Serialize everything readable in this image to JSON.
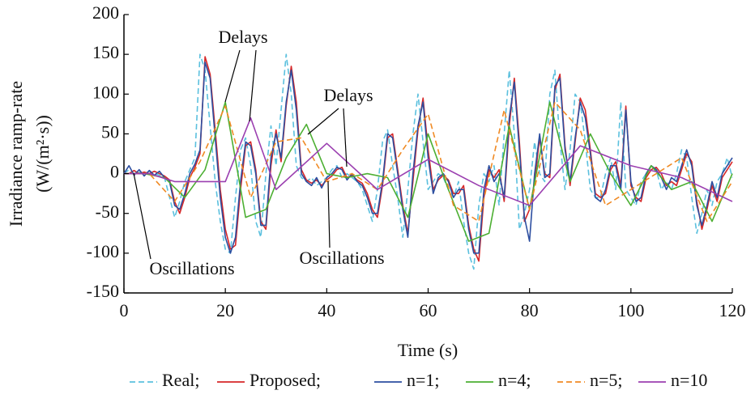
{
  "chart_data": {
    "type": "line",
    "xlabel": "Time (s)",
    "ylabel": [
      "Irradiance ramp-rate",
      "(W/(m²·s))"
    ],
    "xlim": [
      0,
      120
    ],
    "xticks": [
      0,
      20,
      40,
      60,
      80,
      100,
      120
    ],
    "ylim": [
      -150,
      200
    ],
    "yticks": [
      -150,
      -100,
      -50,
      0,
      50,
      100,
      150,
      200
    ],
    "annotations": [
      "Delays",
      "Delays",
      "Oscillations",
      "Oscillations"
    ],
    "series": [
      {
        "name": "Real;",
        "color": "#5bc0de",
        "dash": true,
        "x": [
          0,
          1,
          2,
          3,
          4,
          5,
          6,
          7,
          8,
          9,
          10,
          11,
          12,
          13,
          14,
          15,
          16,
          17,
          18,
          19,
          20,
          21,
          22,
          23,
          24,
          25,
          26,
          27,
          28,
          29,
          30,
          31,
          32,
          33,
          34,
          35,
          36,
          37,
          38,
          39,
          40,
          41,
          42,
          43,
          44,
          45,
          46,
          47,
          48,
          49,
          50,
          51,
          52,
          53,
          54,
          55,
          56,
          57,
          58,
          59,
          60,
          61,
          62,
          63,
          64,
          65,
          66,
          67,
          68,
          69,
          70,
          71,
          72,
          73,
          74,
          75,
          76,
          77,
          78,
          79,
          80,
          81,
          82,
          83,
          84,
          85,
          86,
          87,
          88,
          89,
          90,
          91,
          92,
          93,
          94,
          95,
          96,
          97,
          98,
          99,
          100,
          101,
          102,
          103,
          104,
          105,
          106,
          107,
          108,
          109,
          110,
          111,
          112,
          113,
          114,
          115,
          116,
          117,
          118,
          119,
          120
        ],
        "values": [
          0,
          5,
          0,
          2,
          0,
          3,
          0,
          -2,
          -5,
          -30,
          -55,
          -35,
          -10,
          5,
          20,
          150,
          130,
          60,
          -10,
          -60,
          -95,
          -100,
          -30,
          30,
          45,
          10,
          -60,
          -80,
          0,
          60,
          10,
          80,
          150,
          100,
          10,
          -5,
          -10,
          -5,
          -15,
          -10,
          -5,
          5,
          10,
          -5,
          0,
          -5,
          -10,
          -20,
          -40,
          -60,
          -20,
          40,
          55,
          10,
          -30,
          -80,
          -20,
          50,
          100,
          40,
          -20,
          -10,
          0,
          -5,
          -20,
          -30,
          -10,
          -60,
          -100,
          -120,
          -40,
          0,
          -10,
          10,
          -40,
          50,
          130,
          50,
          -70,
          -50,
          -20,
          40,
          0,
          -10,
          100,
          130,
          40,
          -20,
          30,
          100,
          90,
          40,
          -20,
          -30,
          -30,
          0,
          20,
          -20,
          90,
          -20,
          -30,
          -40,
          -10,
          0,
          10,
          5,
          -20,
          -10,
          -20,
          0,
          30,
          20,
          -30,
          -75,
          -50,
          -20,
          -40,
          -10,
          0,
          20,
          -5
        ]
      },
      {
        "name": "Proposed;",
        "color": "#d62728",
        "x": [
          0,
          1,
          2,
          3,
          4,
          5,
          6,
          7,
          8,
          9,
          10,
          11,
          12,
          13,
          14,
          15,
          16,
          17,
          18,
          19,
          20,
          21,
          22,
          23,
          24,
          25,
          26,
          27,
          28,
          29,
          30,
          31,
          32,
          33,
          34,
          35,
          36,
          37,
          38,
          39,
          40,
          41,
          42,
          43,
          44,
          45,
          46,
          47,
          48,
          49,
          50,
          51,
          52,
          53,
          54,
          55,
          56,
          57,
          58,
          59,
          60,
          61,
          62,
          63,
          64,
          65,
          66,
          67,
          68,
          69,
          70,
          71,
          72,
          73,
          74,
          75,
          76,
          77,
          78,
          79,
          80,
          81,
          82,
          83,
          84,
          85,
          86,
          87,
          88,
          89,
          90,
          91,
          92,
          93,
          94,
          95,
          96,
          97,
          98,
          99,
          100,
          101,
          102,
          103,
          104,
          105,
          106,
          107,
          108,
          109,
          110,
          111,
          112,
          113,
          114,
          115,
          116,
          117,
          118,
          119,
          120
        ],
        "values": [
          0,
          0,
          4,
          0,
          2,
          0,
          3,
          0,
          -3,
          -8,
          -35,
          -50,
          -30,
          -5,
          8,
          25,
          147,
          125,
          55,
          -20,
          -70,
          -95,
          -90,
          -20,
          35,
          40,
          5,
          -60,
          -70,
          10,
          55,
          15,
          85,
          135,
          90,
          5,
          -8,
          -12,
          -8,
          -15,
          -8,
          -3,
          5,
          8,
          -5,
          -2,
          -8,
          -12,
          -25,
          -45,
          -55,
          -15,
          45,
          50,
          5,
          -40,
          -75,
          -10,
          55,
          95,
          30,
          -20,
          -8,
          -2,
          -8,
          -25,
          -25,
          -15,
          -65,
          -95,
          -110,
          -30,
          5,
          -5,
          5,
          -35,
          60,
          120,
          40,
          -60,
          -45,
          -10,
          45,
          0,
          -5,
          105,
          125,
          35,
          -15,
          40,
          95,
          80,
          30,
          -25,
          -30,
          -25,
          5,
          15,
          -15,
          85,
          -15,
          -30,
          -35,
          -5,
          5,
          8,
          0,
          -15,
          -10,
          -15,
          5,
          25,
          15,
          -35,
          -70,
          -45,
          -15,
          -35,
          -5,
          5,
          15
        ]
      },
      {
        "name": "n=1;",
        "color": "#2c4ea0",
        "x": [
          0,
          1,
          2,
          3,
          4,
          5,
          6,
          7,
          8,
          9,
          10,
          11,
          12,
          13,
          14,
          15,
          16,
          17,
          18,
          19,
          20,
          21,
          22,
          23,
          24,
          25,
          26,
          27,
          28,
          29,
          30,
          31,
          32,
          33,
          34,
          35,
          36,
          37,
          38,
          39,
          40,
          41,
          42,
          43,
          44,
          45,
          46,
          47,
          48,
          49,
          50,
          51,
          52,
          53,
          54,
          55,
          56,
          57,
          58,
          59,
          60,
          61,
          62,
          63,
          64,
          65,
          66,
          67,
          68,
          69,
          70,
          71,
          72,
          73,
          74,
          75,
          76,
          77,
          78,
          79,
          80,
          81,
          82,
          83,
          84,
          85,
          86,
          87,
          88,
          89,
          90,
          91,
          92,
          93,
          94,
          95,
          96,
          97,
          98,
          99,
          100,
          101,
          102,
          103,
          104,
          105,
          106,
          107,
          108,
          109,
          110,
          111,
          112,
          113,
          114,
          115,
          116,
          117,
          118,
          119,
          120
        ],
        "values": [
          0,
          10,
          -2,
          5,
          -3,
          4,
          -2,
          3,
          -5,
          -10,
          -40,
          -45,
          -25,
          0,
          12,
          30,
          140,
          120,
          45,
          -30,
          -80,
          -100,
          -80,
          -10,
          40,
          35,
          0,
          -65,
          -65,
          20,
          50,
          20,
          90,
          130,
          80,
          0,
          -10,
          -15,
          -5,
          -18,
          -5,
          0,
          8,
          5,
          -8,
          0,
          -10,
          -15,
          -30,
          -50,
          -50,
          -10,
          50,
          45,
          0,
          -45,
          -80,
          0,
          60,
          90,
          20,
          -25,
          -5,
          0,
          -10,
          -30,
          -20,
          -20,
          -70,
          -100,
          -100,
          -20,
          10,
          -10,
          0,
          -30,
          70,
          115,
          30,
          -55,
          -85,
          0,
          50,
          -5,
          0,
          110,
          120,
          30,
          -10,
          45,
          90,
          70,
          25,
          -30,
          -35,
          -20,
          10,
          10,
          -20,
          80,
          -10,
          -35,
          -30,
          0,
          10,
          5,
          -5,
          -20,
          -5,
          -10,
          10,
          30,
          10,
          -40,
          -65,
          -40,
          -10,
          -30,
          0,
          10,
          20
        ]
      },
      {
        "name": "n=4;",
        "color": "#4caf32",
        "x": [
          0,
          4,
          8,
          12,
          16,
          20,
          24,
          28,
          32,
          36,
          40,
          44,
          48,
          52,
          56,
          60,
          64,
          68,
          72,
          76,
          80,
          84,
          88,
          92,
          96,
          100,
          104,
          108,
          112,
          116,
          120
        ],
        "values": [
          0,
          0,
          -5,
          -30,
          5,
          90,
          -55,
          -45,
          20,
          62,
          0,
          -5,
          0,
          -5,
          -55,
          50,
          -20,
          -85,
          -75,
          60,
          -45,
          90,
          -10,
          50,
          0,
          -40,
          10,
          -20,
          -10,
          -60,
          0
        ]
      },
      {
        "name": "n=5;",
        "color": "#f08a24",
        "dash": true,
        "x": [
          0,
          5,
          10,
          15,
          20,
          25,
          30,
          35,
          40,
          45,
          50,
          55,
          60,
          65,
          70,
          75,
          80,
          85,
          90,
          95,
          100,
          105,
          110,
          115,
          120
        ],
        "values": [
          0,
          0,
          -35,
          15,
          85,
          -30,
          40,
          45,
          -10,
          0,
          -20,
          30,
          75,
          -40,
          -60,
          80,
          -45,
          90,
          55,
          -40,
          -20,
          0,
          20,
          -60,
          -10
        ]
      },
      {
        "name": "n=10",
        "color": "#9b3fb0",
        "x": [
          0,
          5,
          10,
          20,
          25,
          30,
          40,
          50,
          60,
          70,
          80,
          90,
          100,
          110,
          120
        ],
        "values": [
          0,
          0,
          -10,
          -10,
          70,
          -20,
          38,
          -20,
          18,
          -15,
          -40,
          35,
          10,
          -5,
          -35
        ]
      }
    ]
  }
}
